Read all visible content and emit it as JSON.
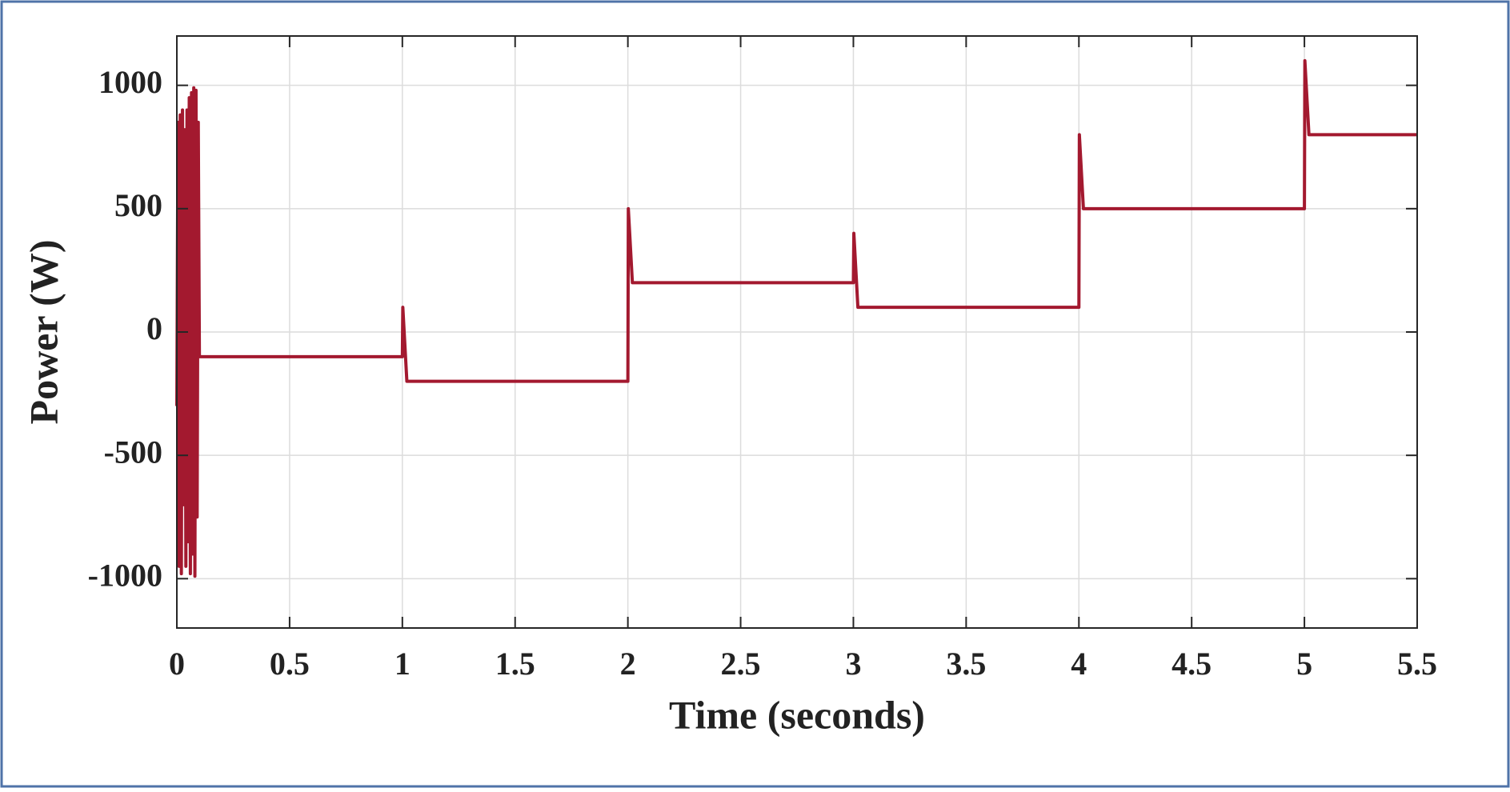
{
  "chart_data": {
    "type": "line",
    "xlabel": "Time (seconds)",
    "ylabel": "Power (W)",
    "x": [
      0,
      0.005,
      0.01,
      0.015,
      0.02,
      0.025,
      0.03,
      0.035,
      0.04,
      0.045,
      0.05,
      0.055,
      0.06,
      0.065,
      0.07,
      0.075,
      0.08,
      0.085,
      0.09,
      0.095,
      0.1,
      1.0,
      1.002,
      1.02,
      2.0,
      2.002,
      2.02,
      3.0,
      3.002,
      3.02,
      4.0,
      4.002,
      4.02,
      5.0,
      5.002,
      5.02,
      5.5
    ],
    "series": [
      {
        "color": "#a3192f",
        "values": [
          -300,
          850,
          -950,
          880,
          -980,
          900,
          -700,
          820,
          -950,
          900,
          -850,
          950,
          -980,
          970,
          -900,
          990,
          -990,
          980,
          -750,
          850,
          -100,
          -100,
          100,
          -200,
          -200,
          500,
          200,
          200,
          400,
          100,
          100,
          800,
          500,
          500,
          1100,
          800,
          800
        ]
      }
    ],
    "xlim": [
      0,
      5.5
    ],
    "xticks": [
      0,
      0.5,
      1,
      1.5,
      2,
      2.5,
      3,
      3.5,
      4,
      4.5,
      5,
      5.5
    ],
    "ylim": [
      -1200,
      1200
    ],
    "yticks": [
      -1000,
      -500,
      0,
      500,
      1000
    ],
    "grid": true
  }
}
